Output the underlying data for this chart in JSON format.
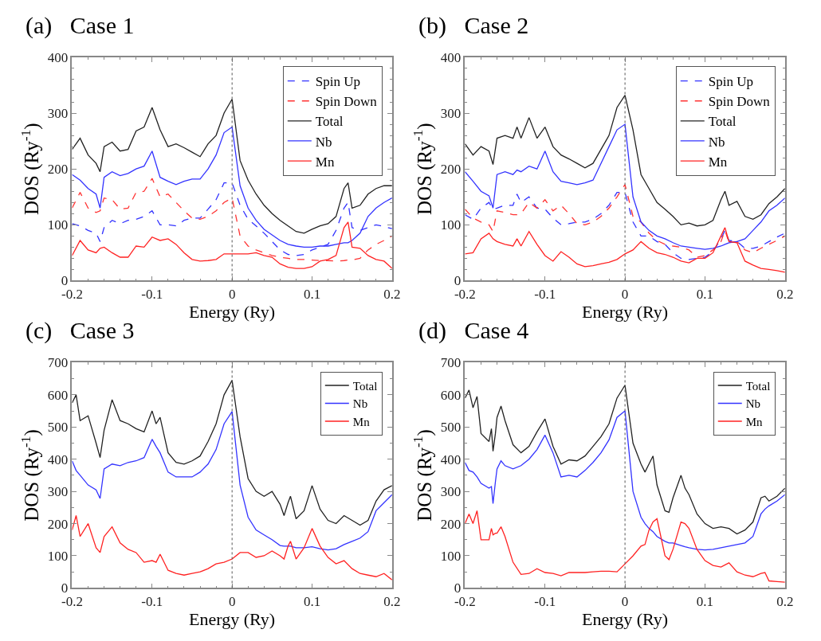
{
  "chart_data": [
    {
      "type": "line",
      "title": "(a)   Case 1",
      "xlabel": "Energy (Ry)",
      "ylabel": "DOS (Ry$^{-1}$)",
      "xlim": [
        -0.2,
        0.2
      ],
      "xticks": [
        -0.2,
        -0.1,
        0,
        0.1,
        0.2
      ],
      "ylim": [
        0,
        400
      ],
      "yticks": [
        0,
        100,
        200,
        300,
        400
      ],
      "legend": "top right",
      "x": [
        -0.2,
        -0.19,
        -0.18,
        -0.17,
        -0.165,
        -0.16,
        -0.15,
        -0.14,
        -0.13,
        -0.12,
        -0.11,
        -0.1,
        -0.09,
        -0.08,
        -0.07,
        -0.06,
        -0.05,
        -0.04,
        -0.03,
        -0.02,
        -0.01,
        0,
        0.01,
        0.02,
        0.03,
        0.04,
        0.05,
        0.06,
        0.07,
        0.08,
        0.09,
        0.1,
        0.11,
        0.12,
        0.13,
        0.14,
        0.145,
        0.15,
        0.16,
        0.17,
        0.18,
        0.19,
        0.2
      ],
      "ref_lines": [
        {
          "axis": "x",
          "value": 0,
          "color": "#555555",
          "line_style": "dotted"
        }
      ],
      "series": [
        {
          "name": "Spin Up",
          "color": "#3333ff",
          "line_style": "dashed",
          "values": [
            102,
            98,
            90,
            85,
            70,
            95,
            108,
            102,
            108,
            110,
            115,
            125,
            100,
            100,
            98,
            108,
            112,
            112,
            128,
            145,
            175,
            175,
            135,
            110,
            98,
            85,
            70,
            55,
            47,
            45,
            47,
            55,
            60,
            65,
            90,
            130,
            140,
            95,
            90,
            95,
            100,
            97,
            93
          ]
        },
        {
          "name": "Spin Down",
          "color": "#ff3333",
          "line_style": "dashed",
          "values": [
            130,
            158,
            130,
            122,
            125,
            148,
            145,
            128,
            130,
            158,
            160,
            183,
            150,
            155,
            140,
            125,
            112,
            110,
            115,
            125,
            140,
            148,
            80,
            62,
            55,
            50,
            45,
            42,
            40,
            38,
            38,
            37,
            36,
            36,
            35,
            36,
            37,
            37,
            40,
            55,
            65,
            72,
            80
          ]
        },
        {
          "name": "Total",
          "color": "#222222",
          "line_style": "solid",
          "values": [
            235,
            255,
            225,
            210,
            195,
            240,
            248,
            232,
            235,
            268,
            275,
            310,
            270,
            240,
            245,
            238,
            230,
            222,
            245,
            260,
            300,
            325,
            215,
            180,
            155,
            135,
            120,
            108,
            98,
            88,
            85,
            92,
            98,
            102,
            115,
            165,
            175,
            130,
            135,
            155,
            165,
            170,
            170
          ]
        },
        {
          "name": "Nb",
          "color": "#3333ff",
          "line_style": "solid",
          "values": [
            190,
            180,
            165,
            155,
            130,
            185,
            195,
            188,
            192,
            200,
            205,
            232,
            185,
            178,
            172,
            178,
            182,
            182,
            200,
            225,
            265,
            275,
            170,
            130,
            108,
            92,
            82,
            72,
            65,
            62,
            60,
            60,
            62,
            62,
            65,
            68,
            68,
            72,
            85,
            115,
            130,
            140,
            148
          ]
        },
        {
          "name": "Mn",
          "color": "#ff2222",
          "line_style": "solid",
          "values": [
            45,
            72,
            55,
            50,
            58,
            60,
            50,
            42,
            42,
            62,
            60,
            78,
            72,
            75,
            65,
            50,
            38,
            35,
            36,
            38,
            48,
            48,
            48,
            48,
            50,
            45,
            42,
            30,
            24,
            22,
            22,
            25,
            35,
            38,
            45,
            95,
            105,
            60,
            58,
            45,
            38,
            35,
            22
          ]
        }
      ]
    },
    {
      "type": "line",
      "title": "(b)   Case 2",
      "xlabel": "Energy (Ry)",
      "ylabel": "DOS (Ry$^{-1}$)",
      "xlim": [
        -0.2,
        0.2
      ],
      "xticks": [
        -0.2,
        -0.1,
        0,
        0.1,
        0.2
      ],
      "ylim": [
        0,
        400
      ],
      "yticks": [
        0,
        100,
        200,
        300,
        400
      ],
      "legend": "top right",
      "x": [
        -0.2,
        -0.19,
        -0.18,
        -0.17,
        -0.165,
        -0.16,
        -0.15,
        -0.14,
        -0.135,
        -0.13,
        -0.12,
        -0.11,
        -0.1,
        -0.09,
        -0.08,
        -0.07,
        -0.06,
        -0.05,
        -0.04,
        -0.03,
        -0.02,
        -0.01,
        0,
        0.01,
        0.02,
        0.03,
        0.04,
        0.05,
        0.06,
        0.07,
        0.08,
        0.09,
        0.1,
        0.11,
        0.12,
        0.125,
        0.13,
        0.14,
        0.15,
        0.16,
        0.17,
        0.18,
        0.19,
        0.2
      ],
      "ref_lines": [
        {
          "axis": "x",
          "value": 0,
          "color": "#555555",
          "line_style": "dotted"
        }
      ],
      "series": [
        {
          "name": "Spin Up",
          "color": "#3333ff",
          "line_style": "dashed",
          "values": [
            118,
            110,
            130,
            140,
            128,
            130,
            135,
            135,
            155,
            140,
            150,
            130,
            128,
            112,
            100,
            102,
            105,
            105,
            110,
            120,
            135,
            158,
            158,
            105,
            80,
            80,
            70,
            65,
            50,
            40,
            38,
            40,
            42,
            52,
            75,
            90,
            72,
            70,
            58,
            58,
            62,
            70,
            78,
            85
          ]
        },
        {
          "name": "Spin Down",
          "color": "#ff3333",
          "line_style": "dashed",
          "values": [
            128,
            112,
            105,
            100,
            88,
            125,
            122,
            118,
            118,
            120,
            140,
            130,
            145,
            125,
            135,
            120,
            102,
            100,
            105,
            115,
            130,
            150,
            172,
            115,
            105,
            85,
            72,
            65,
            62,
            60,
            55,
            42,
            45,
            55,
            70,
            90,
            68,
            70,
            55,
            50,
            58,
            65,
            72,
            80
          ]
        },
        {
          "name": "Total",
          "color": "#222222",
          "line_style": "solid",
          "values": [
            245,
            225,
            240,
            232,
            208,
            255,
            260,
            255,
            275,
            255,
            292,
            255,
            275,
            240,
            225,
            218,
            210,
            202,
            210,
            235,
            260,
            310,
            332,
            270,
            190,
            165,
            140,
            128,
            115,
            100,
            103,
            98,
            100,
            108,
            145,
            160,
            135,
            142,
            115,
            110,
            118,
            138,
            150,
            165
          ]
        },
        {
          "name": "Nb",
          "color": "#3333ff",
          "line_style": "solid",
          "values": [
            195,
            178,
            160,
            152,
            130,
            190,
            195,
            190,
            198,
            195,
            205,
            200,
            232,
            195,
            178,
            175,
            172,
            175,
            180,
            210,
            240,
            270,
            280,
            150,
            105,
            90,
            80,
            75,
            68,
            62,
            60,
            58,
            56,
            58,
            62,
            65,
            68,
            70,
            75,
            90,
            105,
            125,
            135,
            148
          ]
        },
        {
          "name": "Mn",
          "color": "#ff2222",
          "line_style": "solid",
          "values": [
            48,
            50,
            75,
            85,
            75,
            70,
            65,
            62,
            75,
            62,
            88,
            65,
            45,
            35,
            52,
            42,
            30,
            25,
            27,
            30,
            33,
            38,
            48,
            55,
            70,
            58,
            50,
            47,
            42,
            35,
            32,
            40,
            40,
            50,
            80,
            95,
            70,
            68,
            35,
            28,
            22,
            20,
            18,
            15
          ]
        }
      ]
    },
    {
      "type": "line",
      "title": "(c)   Case 3",
      "xlabel": "Energy (Ry)",
      "ylabel": "DOS (Ry$^{-1}$)",
      "xlim": [
        -0.2,
        0.2
      ],
      "xticks": [
        -0.2,
        -0.1,
        0,
        0.1,
        0.2
      ],
      "ylim": [
        0,
        700
      ],
      "yticks": [
        0,
        100,
        200,
        300,
        400,
        500,
        600,
        700
      ],
      "legend": "top right",
      "x": [
        -0.2,
        -0.195,
        -0.19,
        -0.18,
        -0.17,
        -0.165,
        -0.16,
        -0.15,
        -0.14,
        -0.13,
        -0.12,
        -0.11,
        -0.1,
        -0.095,
        -0.09,
        -0.08,
        -0.07,
        -0.06,
        -0.05,
        -0.04,
        -0.03,
        -0.02,
        -0.01,
        0,
        0.01,
        0.02,
        0.03,
        0.04,
        0.05,
        0.06,
        0.065,
        0.07,
        0.073,
        0.08,
        0.09,
        0.1,
        0.11,
        0.12,
        0.13,
        0.14,
        0.15,
        0.16,
        0.17,
        0.18,
        0.19,
        0.2
      ],
      "ref_lines": [
        {
          "axis": "x",
          "value": 0,
          "color": "#555555",
          "line_style": "dotted"
        }
      ],
      "series": [
        {
          "name": "Total",
          "color": "#222222",
          "line_style": "solid",
          "values": [
            575,
            600,
            520,
            535,
            450,
            405,
            490,
            585,
            520,
            510,
            495,
            485,
            550,
            510,
            530,
            420,
            390,
            385,
            395,
            410,
            455,
            510,
            600,
            645,
            470,
            340,
            300,
            285,
            300,
            260,
            225,
            265,
            285,
            215,
            240,
            318,
            245,
            210,
            200,
            225,
            210,
            195,
            210,
            270,
            305,
            318
          ]
        },
        {
          "name": "Nb",
          "color": "#3333ff",
          "line_style": "solid",
          "values": [
            395,
            365,
            350,
            320,
            305,
            278,
            370,
            385,
            380,
            390,
            395,
            405,
            462,
            440,
            420,
            360,
            345,
            345,
            345,
            360,
            385,
            430,
            510,
            548,
            320,
            220,
            180,
            165,
            150,
            132,
            130,
            130,
            130,
            125,
            125,
            128,
            122,
            118,
            122,
            135,
            145,
            155,
            175,
            240,
            265,
            290
          ]
        },
        {
          "name": "Mn",
          "color": "#ff2222",
          "line_style": "solid",
          "values": [
            180,
            225,
            160,
            200,
            125,
            110,
            160,
            190,
            140,
            120,
            110,
            80,
            85,
            80,
            105,
            55,
            45,
            40,
            45,
            50,
            60,
            75,
            80,
            90,
            110,
            110,
            95,
            100,
            115,
            100,
            90,
            130,
            145,
            90,
            125,
            185,
            130,
            95,
            75,
            85,
            60,
            45,
            40,
            35,
            45,
            25
          ]
        }
      ]
    },
    {
      "type": "line",
      "title": "(d)   Case 4",
      "xlabel": "Energy (Ry)",
      "ylabel": "DOS (Ry$^{-1}$)",
      "xlim": [
        -0.2,
        0.2
      ],
      "xticks": [
        -0.2,
        -0.1,
        0,
        0.1,
        0.2
      ],
      "ylim": [
        0,
        700
      ],
      "yticks": [
        0,
        100,
        200,
        300,
        400,
        500,
        600,
        700
      ],
      "legend": "top right",
      "x": [
        -0.2,
        -0.195,
        -0.19,
        -0.185,
        -0.18,
        -0.17,
        -0.167,
        -0.165,
        -0.162,
        -0.16,
        -0.155,
        -0.15,
        -0.14,
        -0.13,
        -0.12,
        -0.11,
        -0.1,
        -0.09,
        -0.08,
        -0.07,
        -0.06,
        -0.05,
        -0.04,
        -0.03,
        -0.02,
        -0.01,
        0,
        0.01,
        0.02,
        0.025,
        0.03,
        0.035,
        0.04,
        0.05,
        0.055,
        0.06,
        0.07,
        0.075,
        0.08,
        0.09,
        0.1,
        0.11,
        0.12,
        0.13,
        0.14,
        0.15,
        0.16,
        0.17,
        0.175,
        0.18,
        0.19,
        0.2
      ],
      "ref_lines": [
        {
          "axis": "x",
          "value": 0,
          "color": "#555555",
          "line_style": "dotted"
        }
      ],
      "series": [
        {
          "name": "Total",
          "color": "#222222",
          "line_style": "solid",
          "values": [
            590,
            615,
            560,
            595,
            480,
            455,
            495,
            425,
            480,
            530,
            565,
            520,
            445,
            420,
            440,
            485,
            525,
            440,
            385,
            398,
            395,
            410,
            440,
            470,
            510,
            590,
            630,
            450,
            385,
            360,
            385,
            410,
            320,
            240,
            235,
            280,
            350,
            310,
            290,
            230,
            200,
            185,
            190,
            185,
            168,
            180,
            205,
            280,
            285,
            270,
            285,
            310
          ]
        },
        {
          "name": "Nb",
          "color": "#3333ff",
          "line_style": "solid",
          "values": [
            390,
            365,
            360,
            345,
            325,
            310,
            315,
            262,
            330,
            370,
            395,
            380,
            370,
            380,
            400,
            430,
            475,
            420,
            345,
            350,
            345,
            365,
            390,
            420,
            460,
            530,
            550,
            300,
            220,
            200,
            185,
            175,
            160,
            145,
            140,
            140,
            132,
            128,
            125,
            120,
            118,
            120,
            125,
            130,
            135,
            140,
            160,
            230,
            245,
            255,
            270,
            290
          ]
        },
        {
          "name": "Mn",
          "color": "#ff2222",
          "line_style": "solid",
          "values": [
            200,
            230,
            200,
            240,
            150,
            150,
            185,
            165,
            170,
            170,
            190,
            160,
            80,
            42,
            45,
            60,
            48,
            45,
            38,
            48,
            48,
            48,
            50,
            52,
            52,
            50,
            75,
            100,
            130,
            135,
            180,
            205,
            215,
            100,
            88,
            120,
            205,
            200,
            185,
            120,
            85,
            70,
            65,
            78,
            50,
            40,
            35,
            45,
            48,
            22,
            20,
            18
          ]
        }
      ]
    }
  ]
}
